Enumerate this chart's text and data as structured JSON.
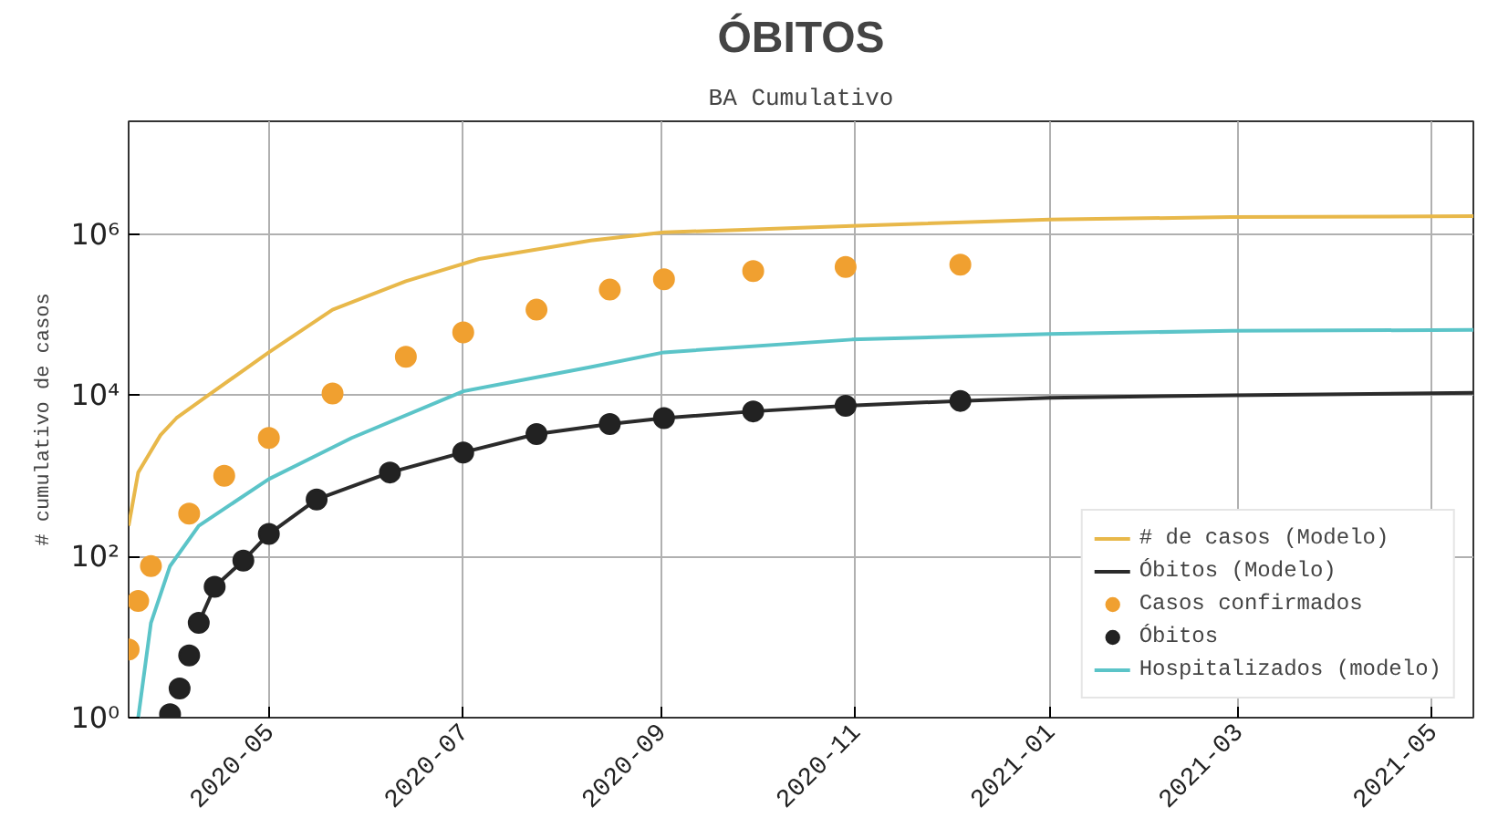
{
  "chart_data": {
    "type": "line",
    "title": "ÓBITOS",
    "subtitle": "BA Cumulativo",
    "ylabel": "# cumulativo de casos",
    "log": "y",
    "grid": true,
    "legend": "bottom right",
    "xlim": [
      "2020-03-18",
      "2021-05-14"
    ],
    "xticks": [
      {
        "value": "2020-05-01",
        "label": "2020-05"
      },
      {
        "value": "2020-07-01",
        "label": "2020-07"
      },
      {
        "value": "2020-09-01",
        "label": "2020-09"
      },
      {
        "value": "2020-11-01",
        "label": "2020-11"
      },
      {
        "value": "2021-01-01",
        "label": "2021-01"
      },
      {
        "value": "2021-03-01",
        "label": "2021-03"
      },
      {
        "value": "2021-05-01",
        "label": "2021-05"
      }
    ],
    "ylim": [
      1,
      25000000
    ],
    "yticks": [
      {
        "value": 1,
        "label": "10⁰"
      },
      {
        "value": 100,
        "label": "10²"
      },
      {
        "value": 10000,
        "label": "10⁴"
      },
      {
        "value": 1000000,
        "label": "10⁶"
      }
    ],
    "series": [
      {
        "name": "# de casos (Modelo)",
        "color": "#e8b84a",
        "x": [
          "2020-03-18",
          "2020-03-21",
          "2020-03-28",
          "2020-04-02",
          "2020-04-12",
          "2020-05-01",
          "2020-05-21",
          "2020-06-13",
          "2020-07-06",
          "2020-08-10",
          "2020-09-02",
          "2020-09-25",
          "2020-10-31",
          "2021-01-01",
          "2021-02-27",
          "2021-05-14"
        ],
        "values": [
          240,
          1100,
          3200,
          5200,
          10000,
          34000,
          115000,
          260000,
          490000,
          830000,
          1050000,
          1120000,
          1260000,
          1510000,
          1620000,
          1660000
        ]
      },
      {
        "name": "Óbitos (Modelo)",
        "color": "#2b2b2b",
        "x": [
          "2020-04-09",
          "2020-04-14",
          "2020-04-23",
          "2020-05-01",
          "2020-05-16",
          "2020-06-08",
          "2020-07-01",
          "2020-07-24",
          "2020-08-16",
          "2020-09-02",
          "2020-09-30",
          "2020-10-29",
          "2020-12-04",
          "2021-01-01",
          "2021-02-27",
          "2021-05-14"
        ],
        "values": [
          15,
          42,
          89,
          190,
          510,
          1100,
          1950,
          3300,
          4400,
          5200,
          6300,
          7400,
          8500,
          9300,
          10000,
          10700
        ]
      },
      {
        "name": "Casos confirmados",
        "type": "scatter",
        "marker": "circle",
        "color": "#f0a030",
        "x": [
          "2020-03-18",
          "2020-03-21",
          "2020-03-25",
          "2020-04-06",
          "2020-04-17",
          "2020-05-01",
          "2020-05-21",
          "2020-06-13",
          "2020-07-01",
          "2020-07-24",
          "2020-08-16",
          "2020-09-02",
          "2020-09-30",
          "2020-10-29",
          "2020-12-04"
        ],
        "values": [
          7,
          28,
          76,
          340,
          1000,
          2950,
          10500,
          30000,
          60000,
          115000,
          204000,
          275000,
          347000,
          389000,
          417000
        ]
      },
      {
        "name": "Óbitos",
        "type": "scatter",
        "marker": "circle",
        "color": "#222222",
        "x": [
          "2020-03-31",
          "2020-04-03",
          "2020-04-06",
          "2020-04-09",
          "2020-04-14",
          "2020-04-23",
          "2020-05-01",
          "2020-05-16",
          "2020-06-08",
          "2020-07-01",
          "2020-07-24",
          "2020-08-16",
          "2020-09-02",
          "2020-09-30",
          "2020-10-29",
          "2020-12-04"
        ],
        "values": [
          1.1,
          2.3,
          5.9,
          15,
          42,
          89,
          190,
          510,
          1100,
          1950,
          3300,
          4400,
          5200,
          6300,
          7400,
          8500
        ]
      },
      {
        "name": "Hospitalizados (modelo)",
        "color": "#5bc4c8",
        "x": [
          "2020-03-21",
          "2020-03-25",
          "2020-03-31",
          "2020-04-09",
          "2020-05-01",
          "2020-05-27",
          "2020-07-01",
          "2020-08-10",
          "2020-09-02",
          "2020-10-31",
          "2021-01-01",
          "2021-02-27",
          "2021-05-14"
        ],
        "values": [
          1,
          15,
          76,
          240,
          910,
          2950,
          11200,
          22400,
          34000,
          49000,
          57500,
          63000,
          64500
        ]
      }
    ]
  }
}
